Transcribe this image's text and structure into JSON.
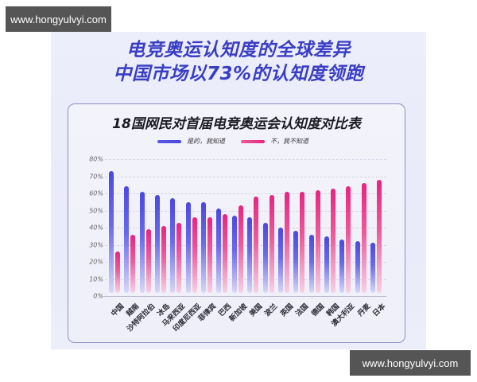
{
  "watermark": {
    "top": "www.hongyulvyi.com",
    "bottom": "www.hongyulvyi.com"
  },
  "headline": {
    "line1": "电竞奥运认知度的全球差异",
    "line2": "中国市场以73%的认知度领跑"
  },
  "colors": {
    "yes": "#4a48e0",
    "no": "#e8247f",
    "headline": "#3a3ec4"
  },
  "chart_data": {
    "type": "bar",
    "title": "18国网民对首届电竞奥运会认知度对比表",
    "xlabel": "",
    "ylabel": "",
    "ylim": [
      0,
      80
    ],
    "yticks": [
      "0%",
      "10%",
      "20%",
      "30%",
      "40%",
      "50%",
      "60%",
      "70%",
      "80%"
    ],
    "grid": true,
    "legend_position": "top",
    "categories": [
      "中国",
      "越南",
      "沙特阿拉伯",
      "冰岛",
      "马来西亚",
      "印度尼西亚",
      "菲律宾",
      "巴西",
      "新加坡",
      "美国",
      "波兰",
      "英国",
      "法国",
      "德国",
      "韩国",
      "澳大利亚",
      "丹麦",
      "日本"
    ],
    "series": [
      {
        "name": "是的，我知道",
        "color": "#4a48e0",
        "values": [
          73,
          64,
          61,
          59,
          57,
          55,
          55,
          51,
          47,
          46,
          43,
          40,
          38,
          36,
          35,
          33,
          32,
          31
        ]
      },
      {
        "name": "不，我不知道",
        "color": "#e8247f",
        "values": [
          26,
          36,
          39,
          41,
          43,
          46,
          46,
          48,
          53,
          58,
          59,
          61,
          61,
          62,
          63,
          64,
          66,
          68
        ]
      }
    ]
  }
}
